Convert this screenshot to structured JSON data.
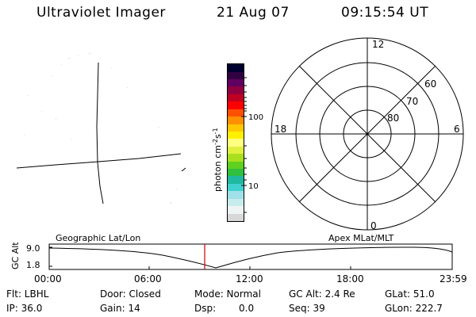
{
  "header": {
    "instrument": "Ultraviolet Imager",
    "date": "21 Aug 07",
    "time": "09:15:54 UT"
  },
  "colorbar": {
    "unit_label": "photon cm",
    "unit_exp1": "-2",
    "unit_mid": "s",
    "unit_exp2": "-1",
    "tick_100": "100",
    "tick_10": "10",
    "colors": [
      "#d8d8d8",
      "#eef4f4",
      "#c8ecec",
      "#a0e0e8",
      "#40d0d0",
      "#20b8a0",
      "#30c040",
      "#60d020",
      "#a8e020",
      "#e0f040",
      "#ffff80",
      "#fff000",
      "#ffc800",
      "#ff9000",
      "#ff5000",
      "#ff0000",
      "#c00020",
      "#900040",
      "#600060",
      "#300040",
      "#000030"
    ]
  },
  "polar": {
    "mlt_12": "12",
    "mlt_18": "18",
    "mlt_6": "6",
    "mlt_0": "0",
    "lat_60": "60",
    "lat_70": "70",
    "lat_80": "80"
  },
  "timeline": {
    "ylabel": "GC Alt",
    "ytick_top": "9.0",
    "ytick_bottom": "1.8",
    "left_label": "Geographic Lat/Lon",
    "right_label": "Apex MLat/MLT",
    "xticks": [
      "00:00",
      "06:00",
      "12:00",
      "18:00",
      "23:59"
    ],
    "marker_color": "#cc0000"
  },
  "info": {
    "flt": "Flt: LBHL",
    "ip": "IP: 36.0",
    "door": "Door: Closed",
    "gain": "Gain: 14",
    "mode": "Mode: Normal",
    "dsp_label": "Dsp:",
    "dsp_value": "0.0",
    "gcalt": "GC Alt: 2.4 Re",
    "seq": "Seq: 39",
    "glat": "GLat: 51.0",
    "glon": "GLon: 222.7"
  }
}
